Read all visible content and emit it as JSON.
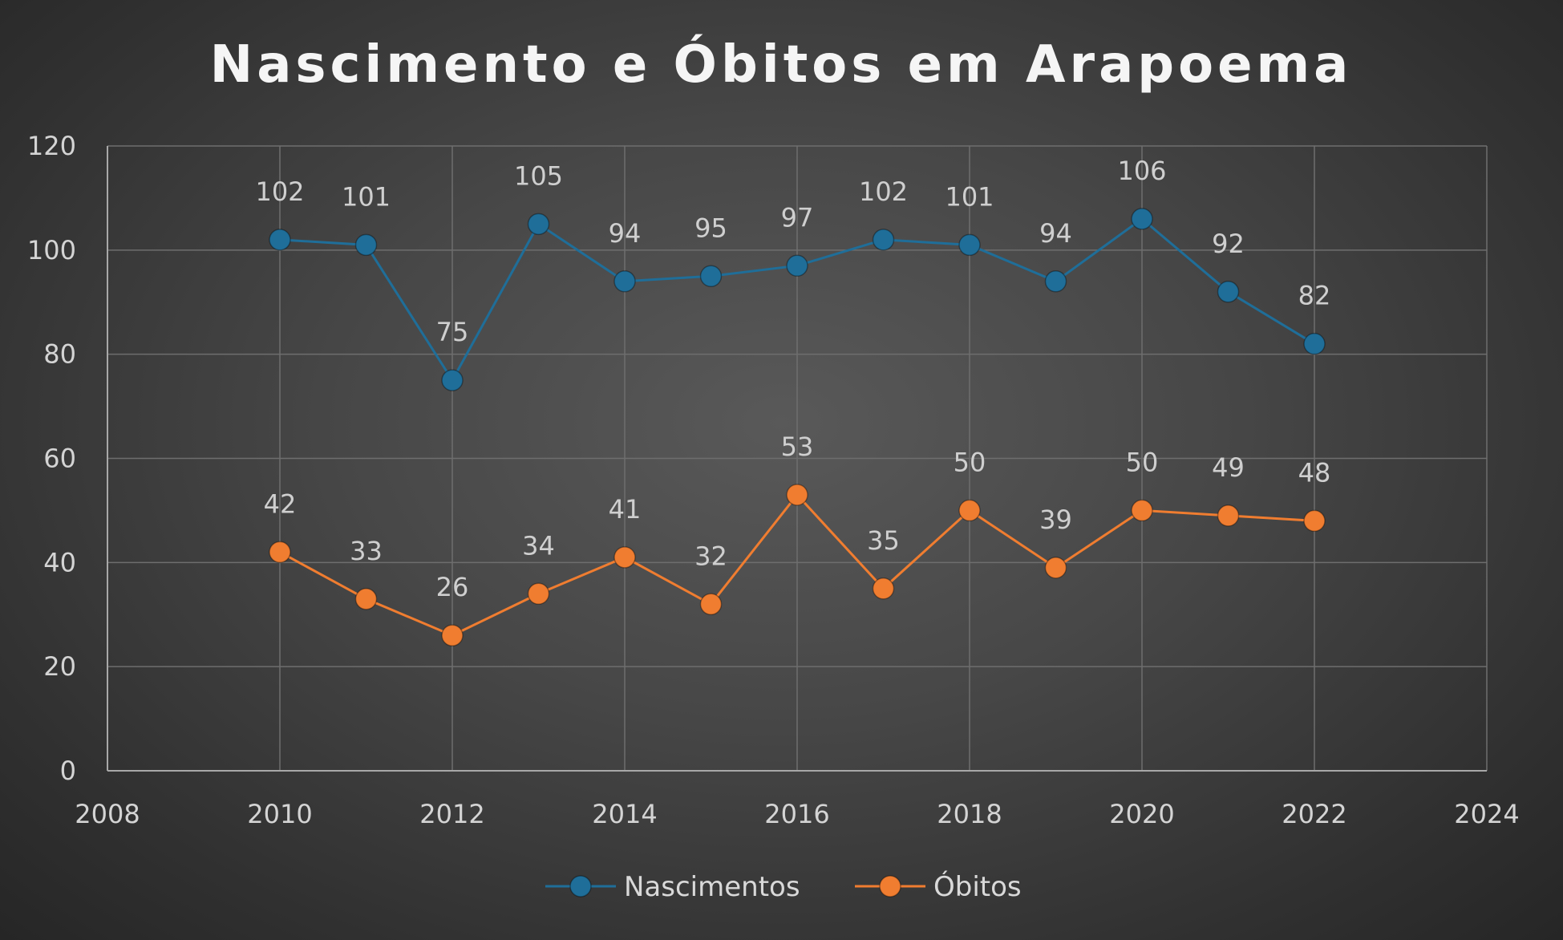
{
  "chart_data": {
    "type": "scatter",
    "title": "Nascimento e Óbitos em Arapoema",
    "xlabel": "",
    "ylabel": "",
    "xlim": [
      2008,
      2024
    ],
    "ylim": [
      0,
      120
    ],
    "x_ticks": [
      2008,
      2010,
      2012,
      2014,
      2016,
      2018,
      2020,
      2022,
      2024
    ],
    "y_ticks": [
      0,
      20,
      40,
      60,
      80,
      100,
      120
    ],
    "grid": true,
    "legend_position": "bottom",
    "x": [
      2010,
      2011,
      2012,
      2013,
      2014,
      2015,
      2016,
      2017,
      2018,
      2019,
      2020,
      2021,
      2022
    ],
    "series": [
      {
        "name": "Nascimentos",
        "color": "#1f6e99",
        "values": [
          102,
          101,
          75,
          105,
          94,
          95,
          97,
          102,
          101,
          94,
          106,
          92,
          82
        ]
      },
      {
        "name": "Óbitos",
        "color": "#f07d30",
        "values": [
          42,
          33,
          26,
          34,
          41,
          32,
          53,
          35,
          50,
          39,
          50,
          49,
          48
        ]
      }
    ]
  }
}
